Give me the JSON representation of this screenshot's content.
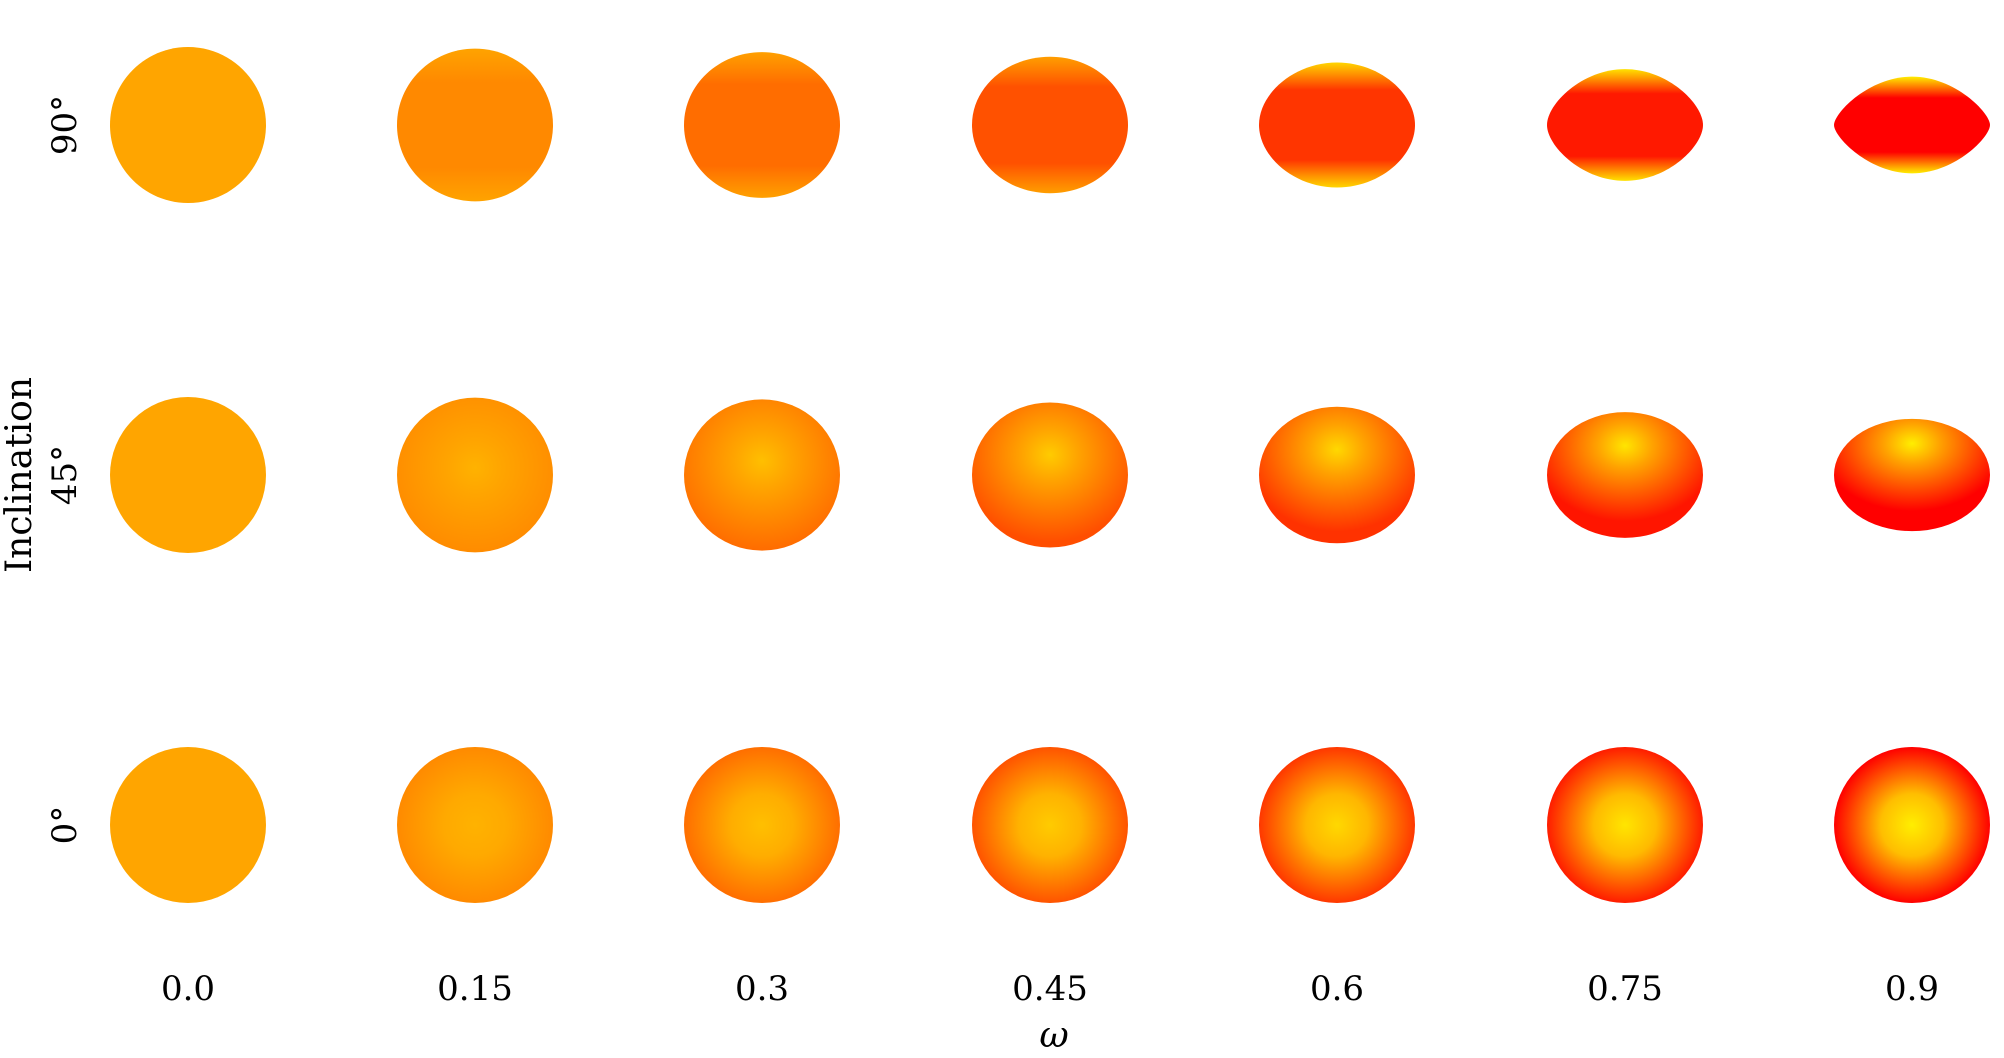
{
  "figure": {
    "xaxis_label": "ω",
    "yaxis_label": "Inclination",
    "omega_values": [
      "0.0",
      "0.15",
      "0.3",
      "0.45",
      "0.6",
      "0.75",
      "0.9"
    ],
    "inclination_labels": [
      "90°",
      "45°",
      "0°"
    ],
    "inclinations_deg": [
      90,
      45,
      0
    ],
    "omega_numeric": [
      0.0,
      0.15,
      0.3,
      0.45,
      0.6,
      0.75,
      0.9
    ],
    "colors": {
      "base": "#ffa500",
      "hot_pole": "#ffff00",
      "cool_equator": "#ff0000"
    }
  }
}
